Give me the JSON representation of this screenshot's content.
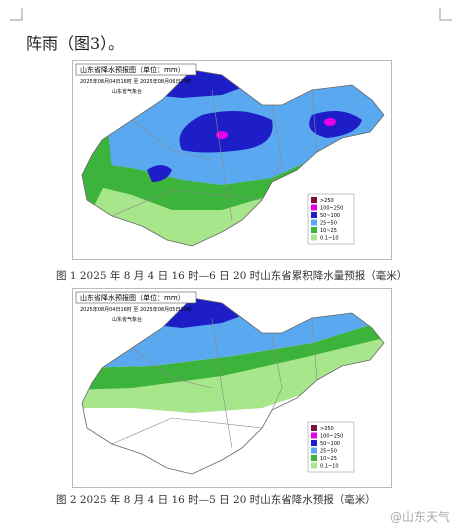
{
  "body_text": "阵雨（图3）。",
  "figures": [
    {
      "map_title": "山东省降水预报图（单位：mm）",
      "period": "2025年08月04日16时 至 2025年08月06日20时",
      "issuer": "山东省气象台",
      "legend": [
        ">250",
        "100~250",
        "50~100",
        "25~50",
        "10~25",
        "0.1~10"
      ],
      "caption": "图 1  2025 年 8 月 4 日 16 时—6 日 20 时山东省累积降水量预报（毫米）"
    },
    {
      "map_title": "山东省降水预报图（单位：mm）",
      "period": "2025年08月04日16时 至 2025年08月05日20时",
      "issuer": "山东省气象台",
      "legend": [
        ">250",
        "100~250",
        "50~100",
        "25~50",
        "10~25",
        "0.1~10"
      ],
      "caption": "图 2  2025 年 8 月 4 日 16 时—5 日 20 时山东省降水预报（毫米）"
    }
  ],
  "watermark": "@山东天气"
}
